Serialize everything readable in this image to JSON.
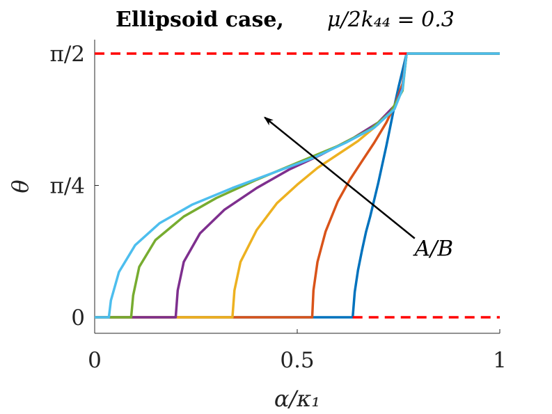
{
  "chart_data": {
    "type": "line",
    "title": "Ellipsoid case,",
    "title_math": "μ/2k₄₄ = 0.3",
    "xlabel": "α/κ₁",
    "ylabel": "θ",
    "xlim": [
      0,
      1
    ],
    "ylim": [
      0,
      1.5708
    ],
    "x_ticks": [
      {
        "value": 0,
        "label": "0"
      },
      {
        "value": 0.5,
        "label": "0.5"
      },
      {
        "value": 1,
        "label": "1"
      }
    ],
    "y_ticks": [
      {
        "value": 0,
        "label": "0"
      },
      {
        "value": 0.7854,
        "label": "π/4"
      },
      {
        "value": 1.5708,
        "label": "π/2"
      }
    ],
    "grid": false,
    "reference_lines": [
      {
        "y": 0,
        "color": "#ff0000",
        "style": "dashed"
      },
      {
        "y": 1.5708,
        "color": "#ff0000",
        "style": "dashed"
      }
    ],
    "saturation_x": 0.77,
    "series": [
      {
        "color": "#0072bd",
        "x": [
          0,
          0.637,
          0.642,
          0.65,
          0.66,
          0.67,
          0.68,
          0.69,
          0.7,
          0.71,
          0.72,
          0.73,
          0.74,
          0.75,
          0.76,
          0.77,
          1.0
        ],
        "y": [
          0,
          0,
          0.15,
          0.28,
          0.4,
          0.51,
          0.6,
          0.7,
          0.8,
          0.91,
          1.02,
          1.14,
          1.26,
          1.37,
          1.47,
          1.5708,
          1.5708
        ]
      },
      {
        "color": "#d95319",
        "x": [
          0,
          0.537,
          0.54,
          0.55,
          0.57,
          0.6,
          0.63,
          0.66,
          0.69,
          0.72,
          0.74,
          0.76,
          0.77,
          1.0
        ],
        "y": [
          0,
          0,
          0.16,
          0.33,
          0.51,
          0.69,
          0.82,
          0.93,
          1.04,
          1.16,
          1.26,
          1.39,
          1.5708,
          1.5708
        ]
      },
      {
        "color": "#edb120",
        "x": [
          0,
          0.34,
          0.345,
          0.36,
          0.4,
          0.45,
          0.5,
          0.55,
          0.6,
          0.65,
          0.7,
          0.74,
          0.76,
          0.77,
          1.0
        ],
        "y": [
          0,
          0,
          0.16,
          0.33,
          0.52,
          0.68,
          0.79,
          0.89,
          0.97,
          1.05,
          1.15,
          1.26,
          1.37,
          1.5708,
          1.5708
        ]
      },
      {
        "color": "#7e2f8e",
        "x": [
          0,
          0.2,
          0.205,
          0.22,
          0.26,
          0.32,
          0.4,
          0.48,
          0.56,
          0.64,
          0.7,
          0.74,
          0.76,
          0.77,
          1.0
        ],
        "y": [
          0,
          0,
          0.16,
          0.33,
          0.5,
          0.64,
          0.77,
          0.88,
          0.97,
          1.07,
          1.16,
          1.26,
          1.37,
          1.5708,
          1.5708
        ]
      },
      {
        "color": "#77ac30",
        "x": [
          0,
          0.09,
          0.095,
          0.11,
          0.15,
          0.22,
          0.3,
          0.4,
          0.5,
          0.6,
          0.68,
          0.73,
          0.76,
          0.77,
          1.0
        ],
        "y": [
          0,
          0,
          0.13,
          0.3,
          0.46,
          0.6,
          0.71,
          0.82,
          0.92,
          1.02,
          1.12,
          1.22,
          1.35,
          1.5708,
          1.5708
        ]
      },
      {
        "color": "#4dbeee",
        "x": [
          0,
          0.035,
          0.04,
          0.06,
          0.1,
          0.16,
          0.24,
          0.34,
          0.44,
          0.54,
          0.62,
          0.69,
          0.74,
          0.76,
          0.77,
          1.0
        ],
        "y": [
          0,
          0,
          0.1,
          0.27,
          0.43,
          0.56,
          0.67,
          0.77,
          0.86,
          0.95,
          1.04,
          1.13,
          1.24,
          1.36,
          1.5708,
          1.5708
        ]
      }
    ],
    "annotations": [
      {
        "text": "A/B",
        "x": 0.8,
        "y": 0.4,
        "arrow_from": [
          0.79,
          0.47
        ],
        "arrow_to": [
          0.42,
          1.19
        ]
      }
    ]
  }
}
